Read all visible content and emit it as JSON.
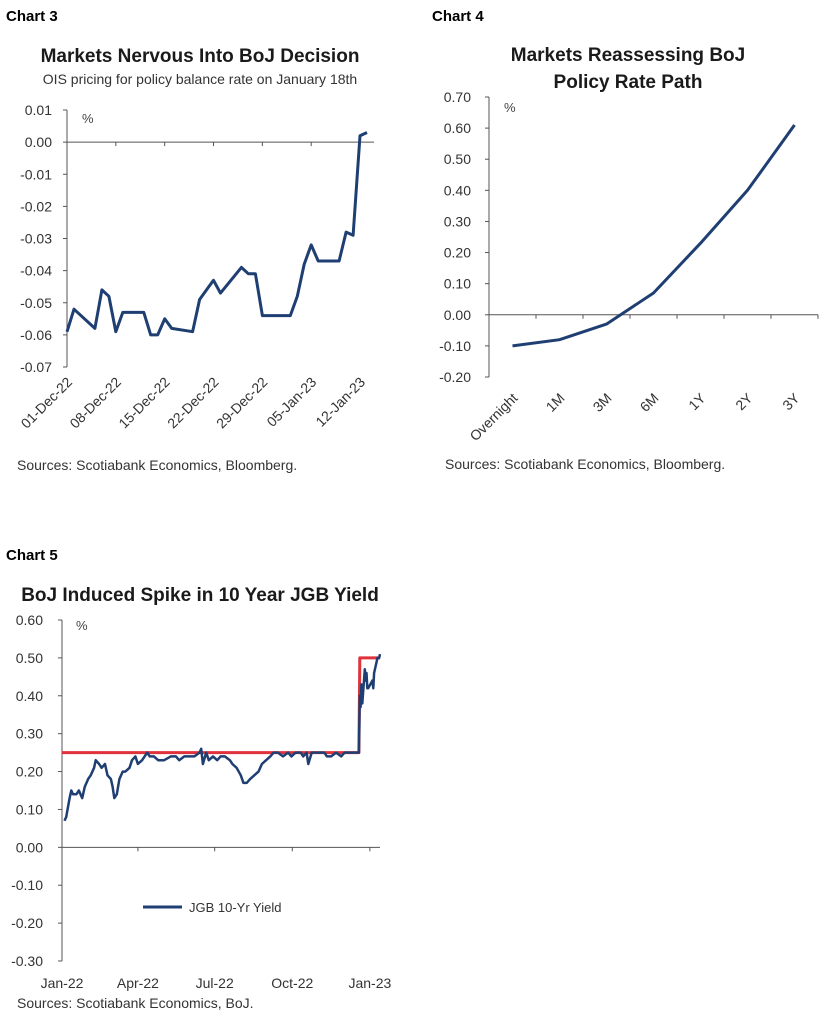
{
  "chart_data": [
    {
      "chart_label": "Chart 3",
      "type": "line",
      "title": "Markets Nervous Into BoJ Decision",
      "subtitle": "OIS pricing for policy balance rate on January 18th",
      "unit": "%",
      "ylim": [
        -0.07,
        0.01
      ],
      "yticks": [
        "0.01",
        "0.00",
        "-0.01",
        "-0.02",
        "-0.03",
        "-0.04",
        "-0.05",
        "-0.06",
        "-0.07"
      ],
      "xticks": [
        "01-Dec-22",
        "08-Dec-22",
        "15-Dec-22",
        "22-Dec-22",
        "29-Dec-22",
        "05-Jan-23",
        "12-Jan-23"
      ],
      "xlim": [
        "2022-12-01",
        "2023-01-14"
      ],
      "source": "Sources: Scotiabank Economics, Bloomberg.",
      "grid": false,
      "series": [
        {
          "color": "#1f3f73",
          "points": [
            [
              "2022-12-01",
              -0.059
            ],
            [
              "2022-12-02",
              -0.052
            ],
            [
              "2022-12-05",
              -0.058
            ],
            [
              "2022-12-06",
              -0.046
            ],
            [
              "2022-12-07",
              -0.048
            ],
            [
              "2022-12-08",
              -0.059
            ],
            [
              "2022-12-09",
              -0.053
            ],
            [
              "2022-12-12",
              -0.053
            ],
            [
              "2022-12-13",
              -0.06
            ],
            [
              "2022-12-14",
              -0.06
            ],
            [
              "2022-12-15",
              -0.055
            ],
            [
              "2022-12-16",
              -0.058
            ],
            [
              "2022-12-19",
              -0.059
            ],
            [
              "2022-12-20",
              -0.049
            ],
            [
              "2022-12-21",
              -0.046
            ],
            [
              "2022-12-22",
              -0.043
            ],
            [
              "2022-12-23",
              -0.047
            ],
            [
              "2022-12-26",
              -0.039
            ],
            [
              "2022-12-27",
              -0.041
            ],
            [
              "2022-12-28",
              -0.041
            ],
            [
              "2022-12-29",
              -0.054
            ],
            [
              "2022-12-30",
              -0.054
            ],
            [
              "2023-01-02",
              -0.054
            ],
            [
              "2023-01-03",
              -0.048
            ],
            [
              "2023-01-04",
              -0.038
            ],
            [
              "2023-01-05",
              -0.032
            ],
            [
              "2023-01-06",
              -0.037
            ],
            [
              "2023-01-09",
              -0.037
            ],
            [
              "2023-01-10",
              -0.028
            ],
            [
              "2023-01-11",
              -0.029
            ],
            [
              "2023-01-12",
              0.002
            ],
            [
              "2023-01-13",
              0.003
            ]
          ]
        }
      ]
    },
    {
      "chart_label": "Chart 4",
      "type": "line",
      "title": "Markets Reassessing BoJ Policy Rate Path",
      "title_lines": [
        "Markets Reassessing BoJ",
        "Policy Rate Path"
      ],
      "unit": "%",
      "ylim": [
        -0.2,
        0.7
      ],
      "yticks": [
        "0.70",
        "0.60",
        "0.50",
        "0.40",
        "0.30",
        "0.20",
        "0.10",
        "0.00",
        "-0.10",
        "-0.20"
      ],
      "categories": [
        "Overnight",
        "1M",
        "3M",
        "6M",
        "1Y",
        "2Y",
        "3Y"
      ],
      "source": "Sources: Scotiabank Economics, Bloomberg.",
      "grid": false,
      "series": [
        {
          "color": "#1f3f73",
          "values": [
            -0.1,
            -0.08,
            -0.03,
            0.07,
            0.23,
            0.4,
            0.61
          ]
        }
      ]
    },
    {
      "chart_label": "Chart 5",
      "type": "line",
      "title": "BoJ Induced Spike in 10 Year JGB Yield",
      "unit": "%",
      "ylim": [
        -0.3,
        0.6
      ],
      "yticks": [
        "0.60",
        "0.50",
        "0.40",
        "0.30",
        "0.20",
        "0.10",
        "0.00",
        "-0.10",
        "-0.20",
        "-0.30"
      ],
      "xticks": [
        "Jan-22",
        "Apr-22",
        "Jul-22",
        "Oct-22",
        "Jan-23"
      ],
      "xlim": [
        "2022-01-01",
        "2023-01-13"
      ],
      "source": "Sources: Scotiabank Economics, BoJ.",
      "legend": "lower-middle",
      "grid": false,
      "series": [
        {
          "name": "JGB 10-Yr Yield",
          "color": "#1f3f73",
          "points": [
            [
              "2022-01-04",
              0.07
            ],
            [
              "2022-01-06",
              0.08
            ],
            [
              "2022-01-10",
              0.13
            ],
            [
              "2022-01-12",
              0.15
            ],
            [
              "2022-01-14",
              0.14
            ],
            [
              "2022-01-18",
              0.14
            ],
            [
              "2022-01-21",
              0.15
            ],
            [
              "2022-01-25",
              0.13
            ],
            [
              "2022-01-28",
              0.16
            ],
            [
              "2022-02-01",
              0.18
            ],
            [
              "2022-02-04",
              0.19
            ],
            [
              "2022-02-08",
              0.21
            ],
            [
              "2022-02-10",
              0.23
            ],
            [
              "2022-02-14",
              0.22
            ],
            [
              "2022-02-17",
              0.21
            ],
            [
              "2022-02-21",
              0.22
            ],
            [
              "2022-02-24",
              0.19
            ],
            [
              "2022-02-28",
              0.18
            ],
            [
              "2022-03-02",
              0.16
            ],
            [
              "2022-03-04",
              0.13
            ],
            [
              "2022-03-07",
              0.14
            ],
            [
              "2022-03-10",
              0.18
            ],
            [
              "2022-03-14",
              0.2
            ],
            [
              "2022-03-17",
              0.2
            ],
            [
              "2022-03-22",
              0.21
            ],
            [
              "2022-03-25",
              0.23
            ],
            [
              "2022-03-29",
              0.24
            ],
            [
              "2022-04-01",
              0.22
            ],
            [
              "2022-04-06",
              0.23
            ],
            [
              "2022-04-12",
              0.25
            ],
            [
              "2022-04-15",
              0.24
            ],
            [
              "2022-04-20",
              0.24
            ],
            [
              "2022-04-25",
              0.23
            ],
            [
              "2022-05-02",
              0.23
            ],
            [
              "2022-05-10",
              0.24
            ],
            [
              "2022-05-16",
              0.24
            ],
            [
              "2022-05-20",
              0.23
            ],
            [
              "2022-05-26",
              0.24
            ],
            [
              "2022-06-01",
              0.24
            ],
            [
              "2022-06-07",
              0.24
            ],
            [
              "2022-06-13",
              0.25
            ],
            [
              "2022-06-15",
              0.26
            ],
            [
              "2022-06-17",
              0.22
            ],
            [
              "2022-06-21",
              0.25
            ],
            [
              "2022-06-24",
              0.23
            ],
            [
              "2022-06-29",
              0.24
            ],
            [
              "2022-07-04",
              0.23
            ],
            [
              "2022-07-08",
              0.24
            ],
            [
              "2022-07-13",
              0.24
            ],
            [
              "2022-07-19",
              0.23
            ],
            [
              "2022-07-22",
              0.22
            ],
            [
              "2022-07-27",
              0.21
            ],
            [
              "2022-08-01",
              0.19
            ],
            [
              "2022-08-04",
              0.17
            ],
            [
              "2022-08-08",
              0.17
            ],
            [
              "2022-08-12",
              0.18
            ],
            [
              "2022-08-17",
              0.19
            ],
            [
              "2022-08-22",
              0.2
            ],
            [
              "2022-08-26",
              0.22
            ],
            [
              "2022-08-31",
              0.23
            ],
            [
              "2022-09-05",
              0.24
            ],
            [
              "2022-09-09",
              0.25
            ],
            [
              "2022-09-14",
              0.25
            ],
            [
              "2022-09-20",
              0.24
            ],
            [
              "2022-09-26",
              0.25
            ],
            [
              "2022-09-30",
              0.24
            ],
            [
              "2022-10-05",
              0.25
            ],
            [
              "2022-10-11",
              0.25
            ],
            [
              "2022-10-14",
              0.24
            ],
            [
              "2022-10-18",
              0.25
            ],
            [
              "2022-10-20",
              0.22
            ],
            [
              "2022-10-24",
              0.25
            ],
            [
              "2022-10-28",
              0.25
            ],
            [
              "2022-11-02",
              0.25
            ],
            [
              "2022-11-08",
              0.25
            ],
            [
              "2022-11-11",
              0.24
            ],
            [
              "2022-11-16",
              0.24
            ],
            [
              "2022-11-22",
              0.25
            ],
            [
              "2022-11-28",
              0.24
            ],
            [
              "2022-12-02",
              0.25
            ],
            [
              "2022-12-07",
              0.25
            ],
            [
              "2022-12-13",
              0.25
            ],
            [
              "2022-12-16",
              0.25
            ],
            [
              "2022-12-19",
              0.25
            ],
            [
              "2022-12-20",
              0.4
            ],
            [
              "2022-12-21",
              0.37
            ],
            [
              "2022-12-22",
              0.43
            ],
            [
              "2022-12-23",
              0.38
            ],
            [
              "2022-12-26",
              0.47
            ],
            [
              "2022-12-27",
              0.44
            ],
            [
              "2022-12-28",
              0.46
            ],
            [
              "2022-12-29",
              0.42
            ],
            [
              "2022-12-30",
              0.42
            ],
            [
              "2023-01-04",
              0.44
            ],
            [
              "2023-01-05",
              0.42
            ],
            [
              "2023-01-06",
              0.46
            ],
            [
              "2023-01-10",
              0.5
            ],
            [
              "2023-01-11",
              0.5
            ],
            [
              "2023-01-12",
              0.5
            ],
            [
              "2023-01-13",
              0.51
            ]
          ]
        },
        {
          "color": "#e0323a",
          "points": [
            [
              "2022-01-01",
              0.25
            ],
            [
              "2022-12-19",
              0.25
            ],
            [
              "2022-12-20",
              0.5
            ],
            [
              "2023-01-13",
              0.5
            ]
          ]
        }
      ]
    }
  ]
}
